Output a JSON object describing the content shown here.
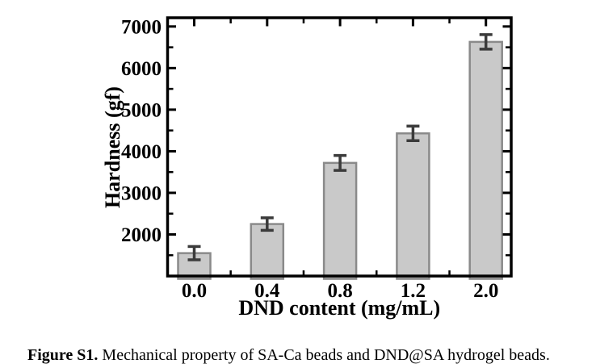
{
  "figure_caption": {
    "prefix": "Figure S1.",
    "text": " Mechanical property of SA-Ca beads and DND@SA hydrogel beads."
  },
  "chart_data": {
    "type": "bar",
    "title": "",
    "xlabel": "DND content (mg/mL)",
    "ylabel": "Hardness (gf)",
    "categories": [
      "0.0",
      "0.4",
      "0.8",
      "1.2",
      "2.0"
    ],
    "values": [
      1550,
      2250,
      3720,
      4430,
      6630
    ],
    "errors": [
      160,
      150,
      180,
      175,
      175
    ],
    "ylim": [
      1000,
      7210
    ],
    "y_major_ticks": [
      2000,
      3000,
      4000,
      5000,
      6000,
      7000
    ],
    "y_minor_ticks": [
      1500,
      2500,
      3500,
      4500,
      5500,
      6500
    ],
    "grid": false,
    "legend": "none",
    "colors": {
      "bar_fill": "#c9c9c9",
      "bar_stroke": "#8a8a8a",
      "error_bar": "#3b3b3b",
      "axis": "#000000",
      "text": "#000000"
    }
  }
}
